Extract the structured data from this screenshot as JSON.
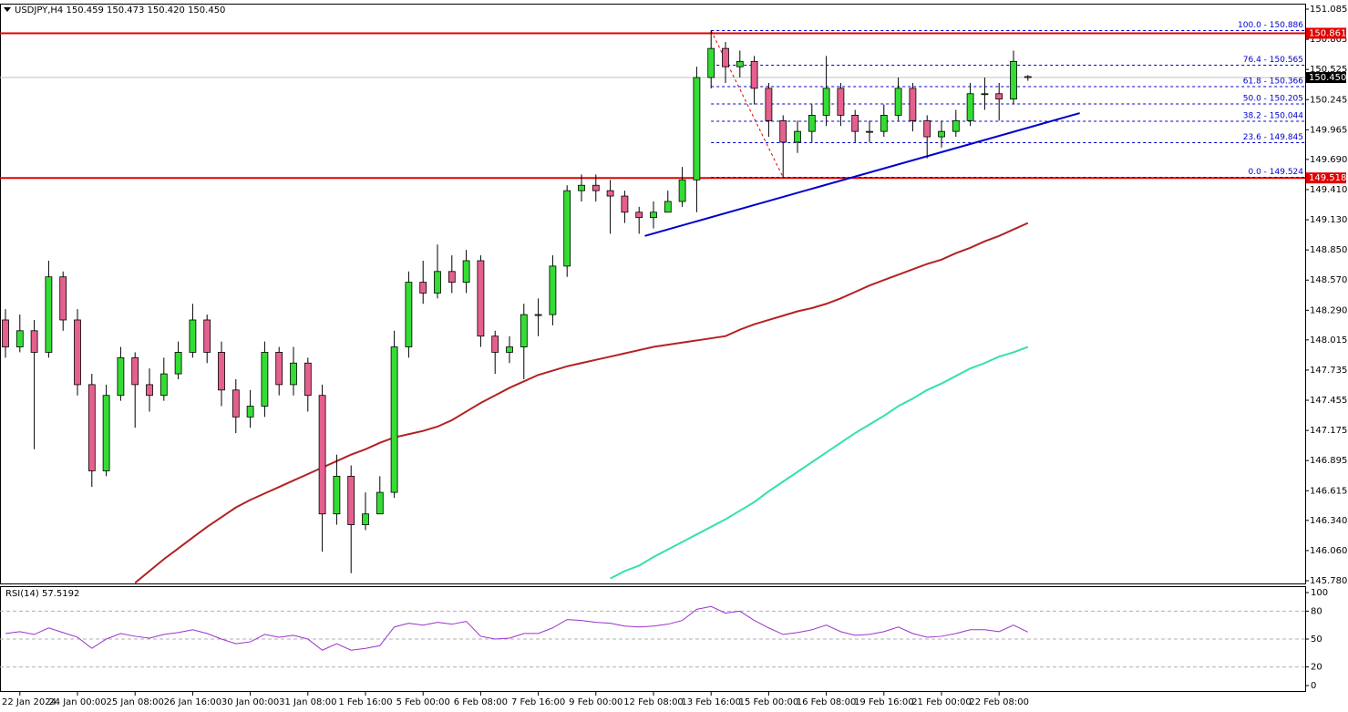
{
  "header": "USDJPY,H4  150.459 150.473 150.420 150.450",
  "chart_data": [
    {
      "type": "candlestick",
      "up_color": "#33dd33",
      "down_color": "#e6608f",
      "open": [
        148.2,
        147.95,
        148.1,
        147.9,
        148.6,
        148.2,
        147.6,
        146.8,
        147.5,
        147.85,
        147.6,
        147.5,
        147.7,
        147.9,
        148.2,
        147.9,
        147.55,
        147.3,
        147.4,
        147.9,
        147.6,
        147.8,
        147.5,
        146.4,
        146.75,
        146.3,
        146.4,
        146.6,
        147.95,
        148.55,
        148.45,
        148.65,
        148.55,
        148.75,
        148.05,
        147.9,
        147.95,
        148.25,
        148.25,
        148.7,
        149.4,
        149.45,
        149.4,
        149.35,
        149.2,
        149.15,
        149.2,
        149.3,
        149.5,
        150.45,
        150.72,
        150.55,
        150.6,
        150.35,
        150.05,
        149.85,
        149.95,
        150.1,
        150.35,
        150.1,
        149.95,
        149.95,
        150.1,
        150.35,
        150.05,
        149.9,
        149.95,
        150.05,
        150.3,
        150.3,
        150.25,
        150.459
      ],
      "high": [
        148.3,
        148.25,
        148.2,
        148.75,
        148.65,
        148.3,
        147.7,
        147.6,
        147.95,
        147.9,
        147.75,
        147.85,
        148.0,
        148.35,
        148.25,
        148.0,
        147.65,
        147.55,
        148.0,
        147.95,
        147.95,
        147.85,
        147.6,
        146.95,
        146.85,
        146.6,
        146.75,
        148.1,
        148.65,
        148.75,
        148.9,
        148.8,
        148.85,
        148.8,
        148.1,
        148.05,
        148.35,
        148.4,
        148.8,
        149.45,
        149.55,
        149.55,
        149.5,
        149.4,
        149.25,
        149.3,
        149.4,
        149.62,
        150.55,
        150.886,
        150.78,
        150.7,
        150.65,
        150.4,
        150.1,
        150.05,
        150.2,
        150.65,
        150.4,
        150.15,
        150.05,
        150.2,
        150.45,
        150.4,
        150.1,
        150.05,
        150.15,
        150.4,
        150.45,
        150.4,
        150.7,
        150.473
      ],
      "low": [
        147.85,
        147.9,
        147.0,
        147.85,
        148.1,
        147.5,
        146.65,
        146.75,
        147.45,
        147.2,
        147.35,
        147.45,
        147.65,
        147.85,
        147.8,
        147.4,
        147.15,
        147.2,
        147.3,
        147.5,
        147.5,
        147.35,
        146.05,
        146.3,
        145.85,
        146.25,
        146.45,
        146.55,
        147.85,
        148.35,
        148.4,
        148.45,
        148.45,
        147.95,
        147.7,
        147.8,
        147.65,
        148.05,
        148.15,
        148.6,
        149.3,
        149.3,
        149.0,
        149.1,
        149.0,
        149.05,
        149.2,
        149.25,
        149.2,
        150.35,
        150.4,
        150.45,
        150.2,
        149.9,
        149.524,
        149.75,
        149.85,
        150.0,
        150.0,
        149.85,
        149.85,
        149.9,
        150.05,
        149.95,
        149.7,
        149.8,
        149.9,
        150.0,
        150.15,
        150.05,
        150.2,
        150.42
      ],
      "close": [
        147.95,
        148.1,
        147.9,
        148.6,
        148.2,
        147.6,
        146.8,
        147.5,
        147.85,
        147.6,
        147.5,
        147.7,
        147.9,
        148.2,
        147.9,
        147.55,
        147.3,
        147.4,
        147.9,
        147.6,
        147.8,
        147.5,
        146.4,
        146.75,
        146.3,
        146.4,
        146.6,
        147.95,
        148.55,
        148.45,
        148.65,
        148.55,
        148.75,
        148.05,
        147.9,
        147.95,
        148.25,
        148.25,
        148.7,
        149.4,
        149.45,
        149.4,
        149.35,
        149.2,
        149.15,
        149.2,
        149.3,
        149.5,
        150.45,
        150.72,
        150.55,
        150.6,
        150.35,
        150.05,
        149.85,
        149.95,
        150.1,
        150.35,
        150.1,
        149.95,
        149.95,
        150.1,
        150.35,
        150.05,
        149.9,
        149.95,
        150.05,
        150.3,
        150.3,
        150.25,
        150.6,
        150.45
      ],
      "moving_averages": [
        {
          "color": "#b22222",
          "values": [
            null,
            null,
            null,
            null,
            null,
            null,
            null,
            null,
            null,
            145.76,
            145.87,
            145.98,
            146.08,
            146.18,
            146.28,
            146.37,
            146.46,
            146.53,
            146.59,
            146.65,
            146.71,
            146.77,
            146.83,
            146.89,
            146.95,
            147.0,
            147.06,
            147.11,
            147.14,
            147.17,
            147.21,
            147.27,
            147.35,
            147.43,
            147.5,
            147.57,
            147.63,
            147.69,
            147.73,
            147.77,
            147.8,
            147.83,
            147.86,
            147.89,
            147.92,
            147.95,
            147.97,
            147.99,
            148.01,
            148.03,
            148.05,
            148.11,
            148.16,
            148.2,
            148.24,
            148.28,
            148.31,
            148.35,
            148.4,
            148.46,
            148.52,
            148.57,
            148.62,
            148.67,
            148.72,
            148.76,
            148.82,
            148.87,
            148.93,
            148.98,
            149.04,
            149.1
          ]
        },
        {
          "color": "#33e0b0",
          "values": [
            null,
            null,
            null,
            null,
            null,
            null,
            null,
            null,
            null,
            null,
            null,
            null,
            null,
            null,
            null,
            null,
            null,
            null,
            null,
            null,
            null,
            null,
            null,
            null,
            null,
            null,
            null,
            null,
            null,
            null,
            null,
            null,
            null,
            null,
            null,
            null,
            null,
            null,
            null,
            null,
            null,
            null,
            145.8,
            145.87,
            145.92,
            146.0,
            146.07,
            146.14,
            146.21,
            146.28,
            146.35,
            146.43,
            146.51,
            146.61,
            146.7,
            146.79,
            146.88,
            146.97,
            147.06,
            147.15,
            147.23,
            147.31,
            147.4,
            147.47,
            147.55,
            147.61,
            147.68,
            147.75,
            147.8,
            147.86,
            147.9,
            147.95
          ]
        }
      ],
      "levels": [
        {
          "value": 150.861,
          "color": "#e00000"
        },
        {
          "value": 149.518,
          "color": "#e00000"
        }
      ],
      "price_line": {
        "value": 150.45,
        "label": "150.450",
        "color": "#c0c0c0",
        "tag_color": "#000000"
      },
      "fibonacci": {
        "color": "#0000cc",
        "diagonal_color": "#e00000",
        "from": {
          "x": 49,
          "y": 150.886
        },
        "to": {
          "x": 54,
          "y": 149.524
        },
        "levels": [
          {
            "label": "100.0 - 150.886",
            "value": 150.886
          },
          {
            "label": "76.4 - 150.565",
            "value": 150.565
          },
          {
            "label": "61.8 - 150.366",
            "value": 150.366
          },
          {
            "label": "50.0 - 150.205",
            "value": 150.205
          },
          {
            "label": "38.2 - 150.044",
            "value": 150.044
          },
          {
            "label": "23.6 - 149.845",
            "value": 149.845
          },
          {
            "label": "0.0 - 149.524",
            "value": 149.524
          }
        ]
      },
      "trendline": {
        "color": "#0000cc",
        "x": [
          44.4,
          74.6
        ],
        "y": [
          148.98,
          150.12
        ]
      },
      "ylim": [
        145.78,
        151.085
      ],
      "yticks": [
        151.085,
        150.805,
        150.525,
        150.245,
        149.965,
        {
          "value": 149.69,
          "label": "149.690"
        },
        {
          "value": 149.41,
          "label": "149.410"
        },
        {
          "value": 149.13,
          "label": "149.130"
        },
        {
          "value": 148.85,
          "label": "148.850"
        },
        {
          "value": 148.57,
          "label": "148.570"
        },
        {
          "value": 148.29,
          "label": "148.290"
        },
        148.015,
        147.735,
        147.455,
        147.175,
        146.895,
        146.615,
        {
          "value": 146.34,
          "label": "146.340"
        },
        {
          "value": 146.06,
          "label": "146.060"
        },
        {
          "value": 145.78,
          "label": "145.780"
        }
      ],
      "xticks": [
        {
          "value": 1,
          "label": "22 Jan 2024"
        },
        {
          "value": 5,
          "label": "24 Jan 00:00"
        },
        {
          "value": 9,
          "label": "25 Jan 08:00"
        },
        {
          "value": 13,
          "label": "26 Jan 16:00"
        },
        {
          "value": 17,
          "label": "30 Jan 00:00"
        },
        {
          "value": 21,
          "label": "31 Jan 08:00"
        },
        {
          "value": 25,
          "label": "1 Feb 16:00"
        },
        {
          "value": 29,
          "label": "5 Feb 00:00"
        },
        {
          "value": 33,
          "label": "6 Feb 08:00"
        },
        {
          "value": 37,
          "label": "7 Feb 16:00"
        },
        {
          "value": 41,
          "label": "9 Feb 00:00"
        },
        {
          "value": 45,
          "label": "12 Feb 08:00"
        },
        {
          "value": 49,
          "label": "13 Feb 16:00"
        },
        {
          "value": 53,
          "label": "15 Feb 00:00"
        },
        {
          "value": 57,
          "label": "16 Feb 08:00"
        },
        {
          "value": 61,
          "label": "19 Feb 16:00"
        },
        {
          "value": 65,
          "label": "21 Feb 00:00"
        },
        {
          "value": 69,
          "label": "22 Feb 08:00"
        }
      ]
    },
    {
      "type": "line",
      "title": "RSI(14) 57.5192",
      "color": "#9933cc",
      "values": [
        56,
        58,
        55,
        62,
        57,
        52,
        40,
        50,
        56,
        53,
        51,
        55,
        57,
        60,
        56,
        50,
        45,
        47,
        55,
        52,
        54,
        50,
        38,
        45,
        38,
        40,
        43,
        63,
        67,
        65,
        68,
        66,
        69,
        53,
        50,
        51,
        56,
        56,
        62,
        71,
        70,
        68,
        67,
        64,
        63,
        64,
        66,
        70,
        82,
        85,
        78,
        80,
        70,
        62,
        55,
        57,
        60,
        65,
        58,
        54,
        55,
        58,
        63,
        56,
        52,
        53,
        56,
        60,
        60,
        58,
        65,
        57.52
      ],
      "ylim": [
        0,
        100
      ],
      "yticks": [
        100,
        80,
        50,
        20,
        0
      ]
    }
  ]
}
